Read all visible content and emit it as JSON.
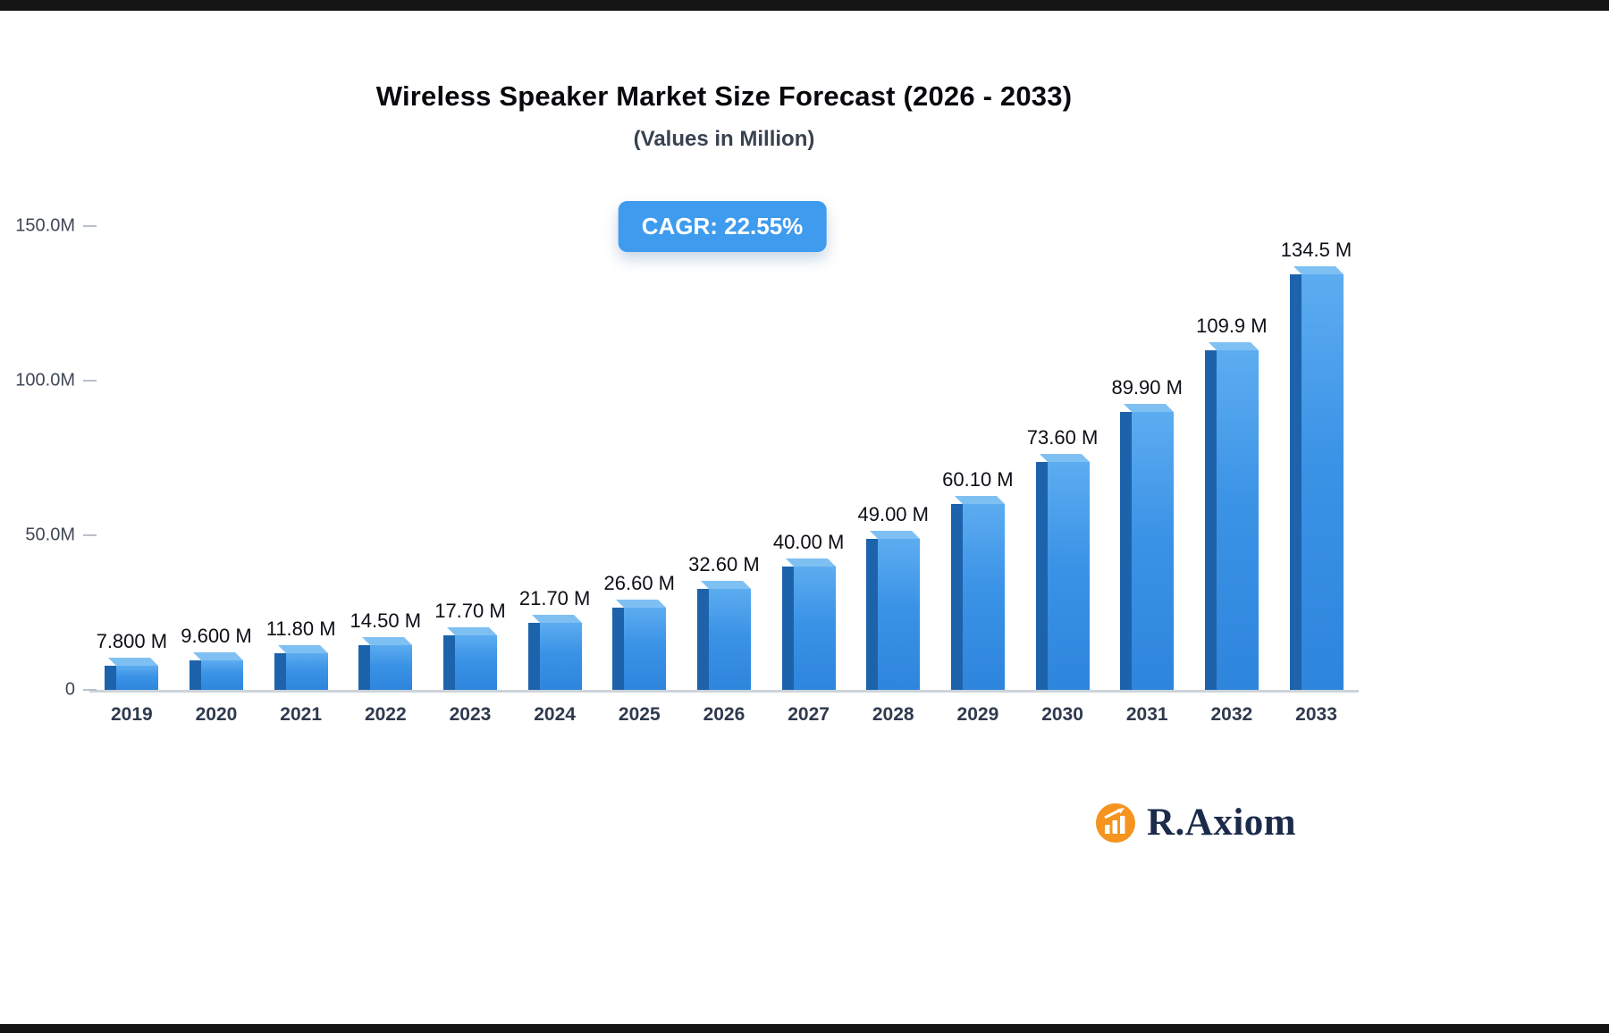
{
  "header": {
    "title": "Wireless Speaker Market Size Forecast (2026 - 2033)",
    "subtitle": "(Values in Million)",
    "badge_label": "CAGR: 22.55%"
  },
  "chart_data": {
    "type": "bar",
    "title": "Wireless Speaker Market Size Forecast (2026 - 2033)",
    "subtitle": "(Values in Million)",
    "cagr": "22.55%",
    "unit": "Million",
    "categories": [
      "2019",
      "2020",
      "2021",
      "2022",
      "2023",
      "2024",
      "2025",
      "2026",
      "2027",
      "2028",
      "2029",
      "2030",
      "2031",
      "2032",
      "2033"
    ],
    "values": [
      7.8,
      9.6,
      11.8,
      14.5,
      17.7,
      21.7,
      26.6,
      32.6,
      40.0,
      49.0,
      60.1,
      73.6,
      89.9,
      109.9,
      134.5
    ],
    "value_labels": [
      "7.800 M",
      "9.600 M",
      "11.80 M",
      "14.50 M",
      "17.70 M",
      "21.70 M",
      "26.60 M",
      "32.60 M",
      "40.00 M",
      "49.00 M",
      "60.10 M",
      "73.60 M",
      "89.90 M",
      "109.9 M",
      "134.5 M"
    ],
    "xlabel": "",
    "ylabel": "",
    "ylim": [
      0,
      150
    ],
    "y_ticks": [
      {
        "value": 150,
        "label": "150.0M"
      },
      {
        "value": 100,
        "label": "100.0M"
      },
      {
        "value": 50,
        "label": "50.0M"
      },
      {
        "value": 0,
        "label": "0"
      }
    ],
    "grid": false,
    "legend": false,
    "colors": {
      "bar_front": "#3b93e6",
      "bar_side": "#1d63ab",
      "bar_top": "#7fc0f3",
      "badge": "#3f9bee"
    }
  },
  "branding": {
    "name": "R.Axiom",
    "icon": "bar-chart-icon",
    "icon_color": "#f5941f",
    "text_color": "#1c2b4a"
  }
}
